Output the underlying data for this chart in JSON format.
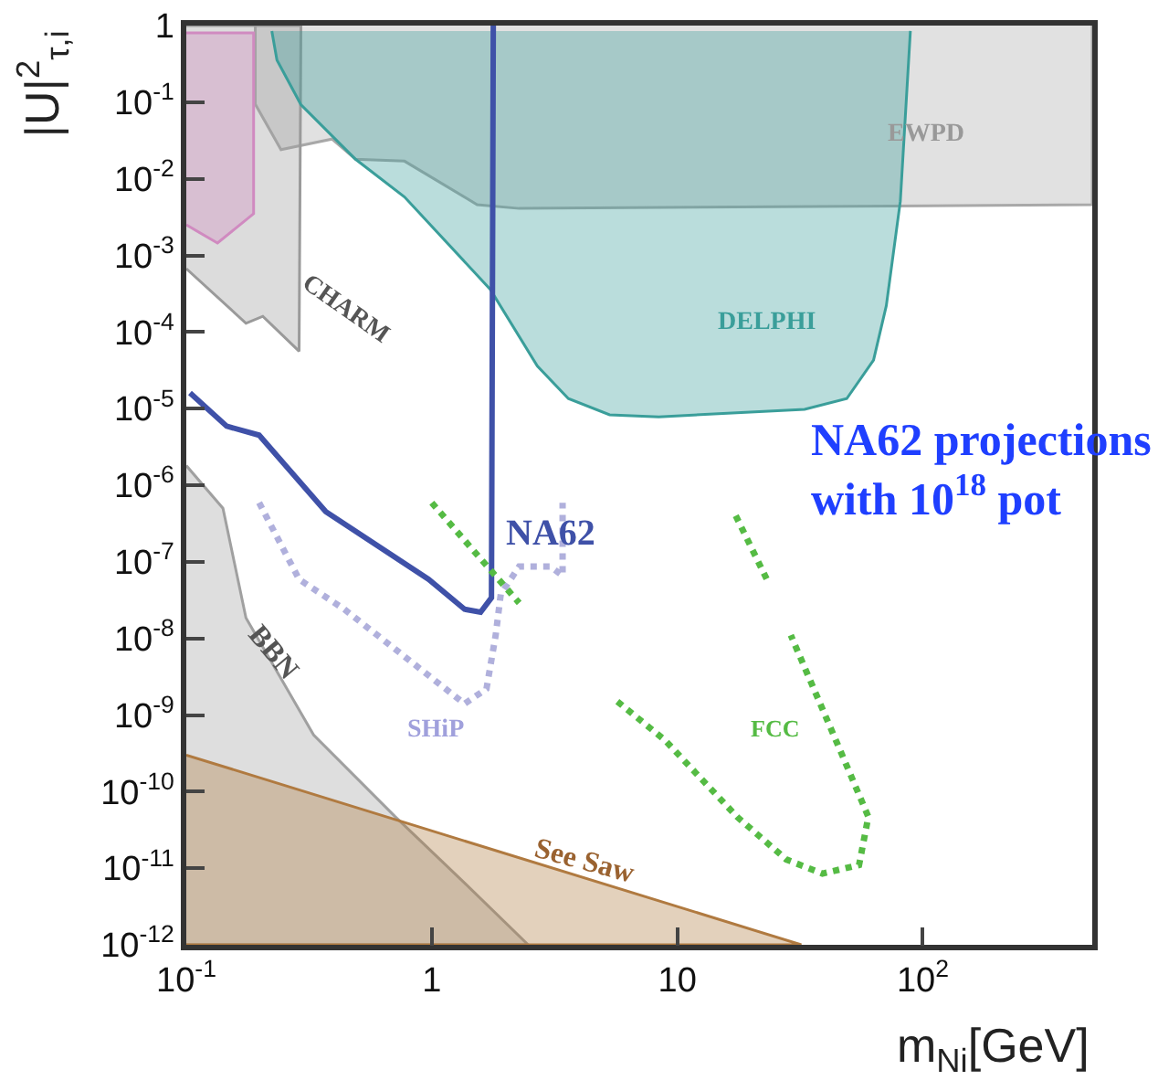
{
  "chart_data": {
    "type": "line",
    "xlabel": "m$_{Ni}$[GeV]",
    "ylabel": "|U|$^{2}$$_{τ,i}$",
    "log": "xy",
    "grid": false,
    "legend": false,
    "xlim": [
      0.1,
      490
    ],
    "ylim": [
      1e-12,
      1
    ],
    "xticks": [
      {
        "value": 0.1,
        "label": "10$^{-1}$"
      },
      1,
      10,
      {
        "value": 100,
        "label": "10$^{2}$"
      }
    ],
    "yticks": [
      1,
      {
        "value": 0.1,
        "label": "10$^{-1}$"
      },
      {
        "value": 0.01,
        "label": "10$^{-2}$"
      },
      {
        "value": 0.001,
        "label": "10$^{-3}$"
      },
      {
        "value": 0.0001,
        "label": "10$^{-4}$"
      },
      {
        "value": 1e-05,
        "label": "10$^{-5}$"
      },
      {
        "value": 1e-06,
        "label": "10$^{-6}$"
      },
      {
        "value": 1e-07,
        "label": "10$^{-7}$"
      },
      {
        "value": 1e-08,
        "label": "10$^{-8}$"
      },
      {
        "value": 1e-09,
        "label": "10$^{-9}$"
      },
      {
        "value": 1e-10,
        "label": "10$^{-10}$"
      },
      {
        "value": 1e-11,
        "label": "10$^{-11}$"
      },
      {
        "value": 1e-12,
        "label": "10$^{-12}$"
      }
    ],
    "series": [
      {
        "type": "area",
        "color": "#a8a8a8",
        "x": [
          0.191,
          0.191,
          0.243,
          0.392,
          0.489,
          0.774,
          1.53,
          2.27,
          490,
          490
        ],
        "values": [
          1,
          0.094,
          0.024,
          0.033,
          0.018,
          0.017,
          0.0046,
          0.0041,
          0.0046,
          1
        ]
      },
      {
        "type": "area",
        "color": "#9a9a9a",
        "x": [
          0.1,
          0.293,
          0.288,
          0.205,
          0.175,
          0.1
        ],
        "values": [
          1,
          1,
          5.6e-05,
          0.00016,
          0.00013,
          0.00067
        ]
      },
      {
        "type": "area",
        "color": "#d08ac0",
        "x": [
          0.1,
          0.188,
          0.188,
          0.134,
          0.1
        ],
        "values": [
          0.8,
          0.8,
          0.0035,
          0.00145,
          0.0025
        ]
      },
      {
        "type": "area",
        "color": "#a0a0a0",
        "x": [
          0.1,
          0.141,
          0.175,
          0.33,
          0.71,
          1.36,
          2.47,
          0.1
        ],
        "values": [
          1.8e-06,
          5e-07,
          1.85e-08,
          5.5e-10,
          4.7e-11,
          6.4e-12,
          1e-12,
          1e-12
        ]
      },
      {
        "type": "area",
        "color": "#b07a40",
        "x": [
          0.1,
          32,
          0.1
        ],
        "values": [
          3e-10,
          1e-12,
          1e-12
        ]
      },
      {
        "type": "area",
        "color": "#3a9e9a",
        "x": [
          0.223,
          0.234,
          0.293,
          0.489,
          0.774,
          1.73,
          2.69,
          3.6,
          5.3,
          8.4,
          33,
          49,
          63,
          71,
          81,
          89
        ],
        "values": [
          0.85,
          0.355,
          0.093,
          0.018,
          0.0058,
          0.00036,
          3.6e-05,
          1.35e-05,
          8.3e-06,
          7.8e-06,
          9.8e-06,
          1.35e-05,
          4.3e-05,
          0.00022,
          0.0051,
          0.85
        ]
      },
      {
        "color": "#3f51a8",
        "line_style": "solid",
        "x": [
          0.1035,
          0.146,
          0.198,
          0.37,
          0.97,
          1.36,
          1.58,
          1.75,
          1.78
        ],
        "values": [
          1.6e-05,
          5.9e-06,
          4.5e-06,
          4.5e-07,
          5.9e-08,
          2.4e-08,
          2.2e-08,
          3.4e-08,
          1
        ]
      },
      {
        "color": "#b0b0dc",
        "line_style": "dotted",
        "x": [
          0.198,
          0.288,
          0.44,
          0.74,
          1.36,
          1.67,
          1.82,
          1.91,
          2.27,
          3.03,
          3.41,
          3.41
        ],
        "values": [
          5.9e-07,
          5.9e-08,
          2.4e-08,
          6.5e-09,
          1.4e-09,
          2.2e-09,
          1.1e-08,
          3.8e-08,
          8.7e-08,
          8.7e-08,
          6.6e-08,
          5.9e-07
        ]
      },
      {
        "color": "#55bb44",
        "line_style": "dotted",
        "x": [
          1.0,
          2.27,
          null,
          17.3,
          23.4,
          null,
          5.7,
          8.9,
          17.5,
          27.8,
          39,
          55,
          60,
          46,
          29
        ],
        "values": [
          5.9e-07,
          2.9e-08,
          null,
          4e-07,
          5.5e-08,
          null,
          1.5e-09,
          4.7e-10,
          4.7e-11,
          1.3e-11,
          8.5e-12,
          1.1e-11,
          4.7e-11,
          3.5e-10,
          1.1e-08
        ]
      }
    ],
    "annotations": [
      "EWPD",
      "DELPHI",
      "CHARM",
      "NA62",
      "SHiP",
      "BBN",
      "See Saw",
      "FCC",
      "NA62 projections\nwith 10$^{18}$ pot"
    ]
  }
}
